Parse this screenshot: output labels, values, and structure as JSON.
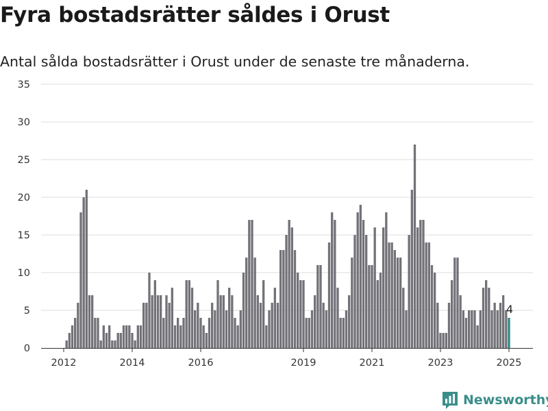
{
  "chart_data": {
    "type": "bar",
    "title": "Fyra bostadsrätter såldes i Orust",
    "subtitle": "Antal sålda bostadsrätter i Orust under de senaste tre månaderna.",
    "x_start": "2012-01",
    "x_end": "2025-01",
    "x_ticks": [
      {
        "date": "2012-01",
        "label": "2012"
      },
      {
        "date": "2014-01",
        "label": "2014"
      },
      {
        "date": "2016-01",
        "label": "2016"
      },
      {
        "date": "2019-01",
        "label": "2019"
      },
      {
        "date": "2021-01",
        "label": "2021"
      },
      {
        "date": "2023-01",
        "label": "2023"
      },
      {
        "date": "2025-01",
        "label": "2025"
      }
    ],
    "y_ticks": [
      0,
      5,
      10,
      15,
      20,
      25,
      30,
      35
    ],
    "ylim": [
      0,
      35
    ],
    "grid": true,
    "values": [
      1,
      2,
      3,
      4,
      6,
      18,
      20,
      21,
      7,
      7,
      4,
      4,
      1,
      3,
      2,
      3,
      1,
      1,
      2,
      2,
      3,
      3,
      3,
      2,
      1,
      3,
      3,
      6,
      6,
      10,
      7,
      9,
      7,
      7,
      4,
      7,
      6,
      8,
      3,
      4,
      3,
      4,
      9,
      9,
      8,
      5,
      6,
      4,
      3,
      2,
      4,
      6,
      5,
      9,
      7,
      7,
      5,
      8,
      7,
      4,
      3,
      5,
      10,
      12,
      17,
      17,
      12,
      7,
      6,
      9,
      3,
      5,
      6,
      8,
      6,
      13,
      13,
      15,
      17,
      16,
      13,
      10,
      9,
      9,
      4,
      4,
      5,
      7,
      11,
      11,
      6,
      5,
      14,
      18,
      17,
      8,
      4,
      4,
      5,
      7,
      12,
      15,
      18,
      19,
      17,
      15,
      11,
      11,
      16,
      9,
      10,
      16,
      18,
      14,
      14,
      13,
      12,
      12,
      8,
      5,
      15,
      21,
      27,
      16,
      17,
      17,
      14,
      14,
      11,
      10,
      6,
      2,
      2,
      2,
      6,
      9,
      12,
      12,
      7,
      5,
      4,
      5,
      5,
      5,
      3,
      5,
      8,
      9,
      8,
      5,
      6,
      5,
      6,
      7,
      5,
      4
    ],
    "highlight_label": "4",
    "bar_color": "#737278",
    "highlight_color": "#2b8c87",
    "brand": "Newsworthy"
  }
}
